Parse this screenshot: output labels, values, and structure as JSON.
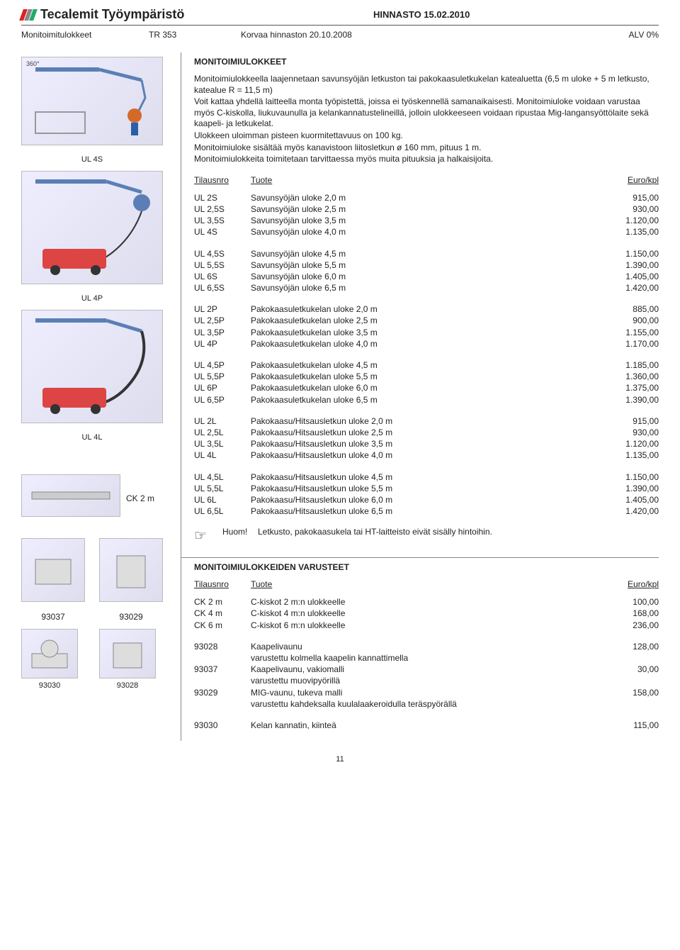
{
  "header": {
    "brand": "Tecalemit Työympäristö",
    "price_title": "HINNASTO 15.02.2010",
    "line2": {
      "c1": "Monitoimitulokkeet",
      "c2": "TR 353",
      "c3": "Korvaa hinnaston 20.10.2008",
      "c4": "ALV 0%"
    }
  },
  "left": {
    "img1_caption": "360°",
    "label1": "UL 4S",
    "label2": "UL 4P",
    "label3": "UL 4L",
    "ck_label": "CK 2 m",
    "p93037": "93037",
    "p93029": "93029",
    "p93030": "93030",
    "p93028": "93028"
  },
  "section1": {
    "title": "MONITOIMIULOKKEET",
    "intro": [
      "Monitoimiulokkeella laajennetaan savunsyöjän letkuston tai pakokaasuletkukelan katealuetta (6,5 m uloke + 5 m letkusto, katealue R = 11,5 m)",
      "Voit kattaa yhdellä laitteella monta työpistettä, joissa ei työskennellä samanaikaisesti. Monitoimiuloke voidaan varustaa myös C-kiskolla, liukuvaunulla ja kelankannatustelineillä, jolloin ulokkeeseen voidaan ripustaa Mig-langansyöttölaite sekä kaapeli- ja letkukelat.",
      "Ulokkeen uloimman pisteen kuormitettavuus on 100 kg.",
      "Monitoimiuloke sisältää myös kanavistoon liitosletkun ø 160 mm, pituus 1 m.",
      "Monitoimiulokkeita toimitetaan tarvittaessa myös muita pituuksia ja halkaisijoita."
    ],
    "thead": {
      "t1": "Tilausnro",
      "t2": "Tuote",
      "t3": "Euro/kpl"
    },
    "groups": [
      [
        {
          "t1": "UL 2S",
          "t2": "Savunsyöjän uloke 2,0 m",
          "t3": "915,00"
        },
        {
          "t1": "UL 2,5S",
          "t2": "Savunsyöjän uloke 2,5 m",
          "t3": "930,00"
        },
        {
          "t1": "UL 3,5S",
          "t2": "Savunsyöjän uloke 3,5 m",
          "t3": "1.120,00"
        },
        {
          "t1": "UL 4S",
          "t2": "Savunsyöjän uloke 4,0 m",
          "t3": "1.135,00"
        }
      ],
      [
        {
          "t1": "UL 4,5S",
          "t2": "Savunsyöjän uloke 4,5 m",
          "t3": "1.150,00"
        },
        {
          "t1": "UL 5,5S",
          "t2": "Savunsyöjän uloke 5,5 m",
          "t3": "1.390,00"
        },
        {
          "t1": "UL 6S",
          "t2": "Savunsyöjän uloke 6,0 m",
          "t3": "1.405,00"
        },
        {
          "t1": "UL 6,5S",
          "t2": "Savunsyöjän uloke 6,5 m",
          "t3": "1.420,00"
        }
      ],
      [
        {
          "t1": "UL 2P",
          "t2": "Pakokaasuletkukelan uloke 2,0 m",
          "t3": "885,00"
        },
        {
          "t1": "UL 2,5P",
          "t2": "Pakokaasuletkukelan uloke 2,5 m",
          "t3": "900,00"
        },
        {
          "t1": "UL 3,5P",
          "t2": "Pakokaasuletkukelan uloke 3,5 m",
          "t3": "1.155,00"
        },
        {
          "t1": "UL 4P",
          "t2": "Pakokaasuletkukelan uloke 4,0 m",
          "t3": "1.170,00"
        }
      ],
      [
        {
          "t1": "UL 4,5P",
          "t2": "Pakokaasuletkukelan uloke 4,5 m",
          "t3": "1.185,00"
        },
        {
          "t1": "UL 5,5P",
          "t2": "Pakokaasuletkukelan uloke 5,5 m",
          "t3": "1.360,00"
        },
        {
          "t1": "UL 6P",
          "t2": "Pakokaasuletkukelan uloke 6,0 m",
          "t3": "1.375,00"
        },
        {
          "t1": "UL 6,5P",
          "t2": "Pakokaasuletkukelan uloke 6,5 m",
          "t3": "1.390,00"
        }
      ],
      [
        {
          "t1": "UL 2L",
          "t2": "Pakokaasu/Hitsausletkun uloke 2,0 m",
          "t3": "915,00"
        },
        {
          "t1": "UL 2,5L",
          "t2": "Pakokaasu/Hitsausletkun uloke 2,5 m",
          "t3": "930,00"
        },
        {
          "t1": "UL 3,5L",
          "t2": "Pakokaasu/Hitsausletkun uloke 3,5 m",
          "t3": "1.120,00"
        },
        {
          "t1": "UL 4L",
          "t2": "Pakokaasu/Hitsausletkun uloke 4,0 m",
          "t3": "1.135,00"
        }
      ],
      [
        {
          "t1": "UL 4,5L",
          "t2": "Pakokaasu/Hitsausletkun uloke 4,5 m",
          "t3": "1.150,00"
        },
        {
          "t1": "UL 5,5L",
          "t2": "Pakokaasu/Hitsausletkun uloke 5,5 m",
          "t3": "1.390,00"
        },
        {
          "t1": "UL 6L",
          "t2": "Pakokaasu/Hitsausletkun uloke 6,0 m",
          "t3": "1.405,00"
        },
        {
          "t1": "UL 6,5L",
          "t2": "Pakokaasu/Hitsausletkun uloke 6,5 m",
          "t3": "1.420,00"
        }
      ]
    ],
    "huom_label": "Huom!",
    "huom_text": "Letkusto, pakokaasukela tai HT-laitteisto eivät sisälly hintoihin."
  },
  "section2": {
    "title": "MONITOIMIULOKKEIDEN VARUSTEET",
    "thead": {
      "t1": "Tilausnro",
      "t2": "Tuote",
      "t3": "Euro/kpl"
    },
    "group1": [
      {
        "t1": "CK 2 m",
        "t2": "C-kiskot 2 m:n ulokkeelle",
        "t3": "100,00"
      },
      {
        "t1": "CK 4 m",
        "t2": "C-kiskot 4 m:n ulokkeelle",
        "t3": "168,00"
      },
      {
        "t1": "CK 6 m",
        "t2": "C-kiskot 6 m:n ulokkeelle",
        "t3": "236,00"
      }
    ],
    "group2": [
      {
        "t1": "93028",
        "t2": "Kaapelivaunu",
        "t3": "128,00",
        "desc": "varustettu kolmella kaapelin kannattimella"
      },
      {
        "t1": "93037",
        "t2": "Kaapelivaunu, vakiomalli",
        "t3": "30,00",
        "desc": "varustettu muovipyörillä"
      },
      {
        "t1": "93029",
        "t2": "MIG-vaunu, tukeva malli",
        "t3": "158,00",
        "desc": "varustettu kahdeksalla kuulalaakeroidulla teräspyörällä"
      }
    ],
    "group3": [
      {
        "t1": "93030",
        "t2": "Kelan kannatin, kiinteä",
        "t3": "115,00"
      }
    ]
  },
  "page_num": "11"
}
